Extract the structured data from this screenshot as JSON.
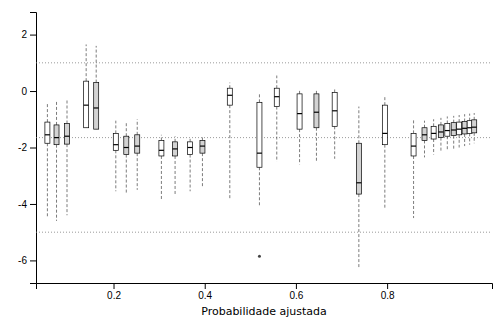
{
  "chart_data": {
    "type": "boxplot",
    "x_label": "Probabilidade ajustada",
    "xlim": [
      0.03,
      1.03
    ],
    "ylim": [
      -6.8,
      2.8
    ],
    "xticks": [
      0.2,
      0.4,
      0.6,
      0.8
    ],
    "yticks": [
      2,
      0,
      -2,
      -4,
      -6
    ],
    "hlines": [
      1.0,
      -1.65,
      -5.0
    ],
    "boxes": [
      {
        "x": 0.055,
        "q1": -1.85,
        "median": -1.55,
        "q3": -1.1,
        "whislo": -4.5,
        "whishi": -0.4,
        "fliers": [],
        "color": "#ffffff"
      },
      {
        "x": 0.075,
        "q1": -1.9,
        "median": -1.65,
        "q3": -1.2,
        "whislo": -4.6,
        "whishi": -0.35,
        "fliers": [],
        "color": "#d3d3d3"
      },
      {
        "x": 0.098,
        "q1": -1.88,
        "median": -1.6,
        "q3": -1.15,
        "whislo": -4.4,
        "whishi": -0.3,
        "fliers": [],
        "color": "#d3d3d3"
      },
      {
        "x": 0.14,
        "q1": -1.3,
        "median": -0.5,
        "q3": 0.35,
        "whislo": -0.1,
        "whishi": 1.65,
        "fliers": [],
        "color": "#ffffff"
      },
      {
        "x": 0.162,
        "q1": -1.35,
        "median": -0.6,
        "q3": 0.3,
        "whislo": -0.1,
        "whishi": 1.6,
        "fliers": [],
        "color": "#d3d3d3"
      },
      {
        "x": 0.205,
        "q1": -2.1,
        "median": -1.9,
        "q3": -1.5,
        "whislo": -3.55,
        "whishi": -1.05,
        "fliers": [],
        "color": "#ffffff"
      },
      {
        "x": 0.228,
        "q1": -2.25,
        "median": -2.0,
        "q3": -1.6,
        "whislo": -3.6,
        "whishi": -1.1,
        "fliers": [],
        "color": "#d3d3d3"
      },
      {
        "x": 0.252,
        "q1": -2.2,
        "median": -1.95,
        "q3": -1.55,
        "whislo": -3.5,
        "whishi": -1.0,
        "fliers": [],
        "color": "#d3d3d3"
      },
      {
        "x": 0.305,
        "q1": -2.3,
        "median": -2.1,
        "q3": -1.75,
        "whislo": -3.85,
        "whishi": -1.55,
        "fliers": [],
        "color": "#ffffff"
      },
      {
        "x": 0.335,
        "q1": -2.3,
        "median": -2.05,
        "q3": -1.8,
        "whislo": -3.7,
        "whishi": -1.6,
        "fliers": [],
        "color": "#d3d3d3"
      },
      {
        "x": 0.368,
        "q1": -2.25,
        "median": -2.0,
        "q3": -1.8,
        "whislo": -3.55,
        "whishi": -1.65,
        "fliers": [],
        "color": "#ffffff"
      },
      {
        "x": 0.395,
        "q1": -2.2,
        "median": -1.95,
        "q3": -1.75,
        "whislo": -3.4,
        "whishi": -1.6,
        "fliers": [],
        "color": "#d3d3d3"
      },
      {
        "x": 0.455,
        "q1": -0.5,
        "median": -0.15,
        "q3": 0.1,
        "whislo": -3.85,
        "whishi": 0.3,
        "fliers": [],
        "color": "#ffffff"
      },
      {
        "x": 0.52,
        "q1": -2.7,
        "median": -2.2,
        "q3": -0.4,
        "whislo": -4.05,
        "whishi": -0.05,
        "fliers": [
          -5.85
        ],
        "color": "#ffffff"
      },
      {
        "x": 0.558,
        "q1": -0.55,
        "median": -0.2,
        "q3": 0.1,
        "whislo": -2.5,
        "whishi": 0.55,
        "fliers": [],
        "color": "#ffffff"
      },
      {
        "x": 0.608,
        "q1": -1.35,
        "median": -0.8,
        "q3": -0.1,
        "whislo": -2.6,
        "whishi": 0.05,
        "fliers": [],
        "color": "#ffffff"
      },
      {
        "x": 0.645,
        "q1": -1.3,
        "median": -0.75,
        "q3": -0.1,
        "whislo": -2.5,
        "whishi": 0.05,
        "fliers": [],
        "color": "#d3d3d3"
      },
      {
        "x": 0.685,
        "q1": -1.25,
        "median": -0.7,
        "q3": -0.05,
        "whislo": -2.4,
        "whishi": 0.1,
        "fliers": [],
        "color": "#ffffff"
      },
      {
        "x": 0.738,
        "q1": -3.65,
        "median": -3.25,
        "q3": -1.85,
        "whislo": -6.25,
        "whishi": -0.55,
        "fliers": [],
        "color": "#d3d3d3"
      },
      {
        "x": 0.795,
        "q1": -1.9,
        "median": -1.5,
        "q3": -0.5,
        "whislo": -4.15,
        "whishi": -0.2,
        "fliers": [],
        "color": "#ffffff"
      },
      {
        "x": 0.858,
        "q1": -2.3,
        "median": -1.95,
        "q3": -1.5,
        "whislo": -4.5,
        "whishi": -1.0,
        "fliers": [],
        "color": "#ffffff"
      },
      {
        "x": 0.882,
        "q1": -1.75,
        "median": -1.55,
        "q3": -1.3,
        "whislo": -2.35,
        "whishi": -1.05,
        "fliers": [],
        "color": "#d3d3d3"
      },
      {
        "x": 0.902,
        "q1": -1.7,
        "median": -1.5,
        "q3": -1.25,
        "whislo": -2.25,
        "whishi": -1.0,
        "fliers": [],
        "color": "#ffffff"
      },
      {
        "x": 0.918,
        "q1": -1.65,
        "median": -1.45,
        "q3": -1.2,
        "whislo": -2.15,
        "whishi": -0.95,
        "fliers": [],
        "color": "#d3d3d3"
      },
      {
        "x": 0.932,
        "q1": -1.6,
        "median": -1.4,
        "q3": -1.15,
        "whislo": -2.1,
        "whishi": -0.9,
        "fliers": [],
        "color": "#ffffff"
      },
      {
        "x": 0.946,
        "q1": -1.58,
        "median": -1.38,
        "q3": -1.12,
        "whislo": -2.05,
        "whishi": -0.88,
        "fliers": [],
        "color": "#d3d3d3"
      },
      {
        "x": 0.958,
        "q1": -1.55,
        "median": -1.35,
        "q3": -1.1,
        "whislo": -2.0,
        "whishi": -0.85,
        "fliers": [],
        "color": "#ffffff"
      },
      {
        "x": 0.97,
        "q1": -1.52,
        "median": -1.32,
        "q3": -1.08,
        "whislo": -1.95,
        "whishi": -0.82,
        "fliers": [],
        "color": "#d3d3d3"
      },
      {
        "x": 0.981,
        "q1": -1.5,
        "median": -1.3,
        "q3": -1.05,
        "whislo": -1.9,
        "whishi": -0.8,
        "fliers": [],
        "color": "#ffffff"
      },
      {
        "x": 0.991,
        "q1": -1.48,
        "median": -1.28,
        "q3": -1.02,
        "whislo": -1.85,
        "whishi": -0.78,
        "fliers": [],
        "color": "#d3d3d3"
      }
    ]
  }
}
